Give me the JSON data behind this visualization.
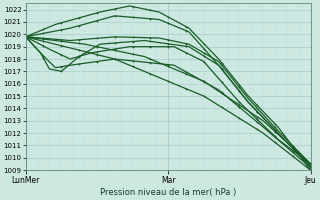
{
  "xlabel": "Pression niveau de la mer( hPa )",
  "ylim": [
    1009,
    1022.5
  ],
  "yticks": [
    1009,
    1010,
    1011,
    1012,
    1013,
    1014,
    1015,
    1016,
    1017,
    1018,
    1019,
    1020,
    1021,
    1022
  ],
  "xtick_labels": [
    "LunMer",
    "Mar",
    "Jeu"
  ],
  "xtick_positions": [
    0,
    48,
    96
  ],
  "bg_color": "#cce8e0",
  "grid_major_color": "#aacccc",
  "grid_minor_color": "#bbdddd",
  "line_color": "#1a5c28"
}
